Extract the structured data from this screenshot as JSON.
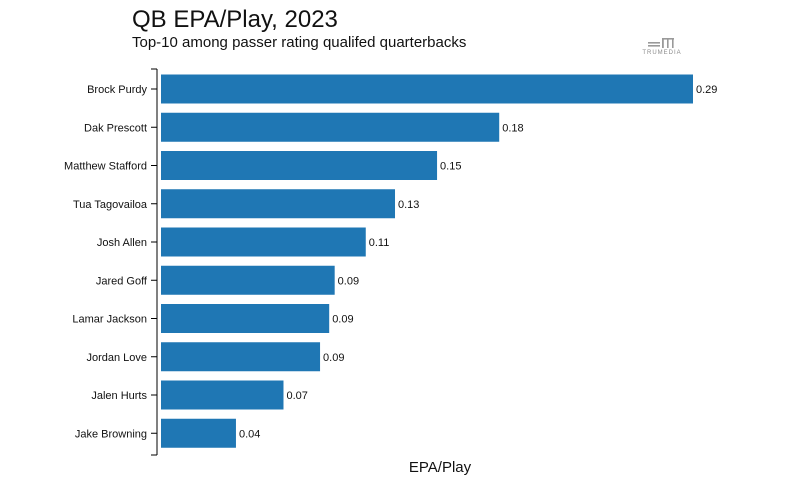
{
  "chart_data": {
    "type": "bar",
    "orientation": "horizontal",
    "title": "QB EPA/Play, 2023",
    "subtitle": "Top-10 among passer rating qualifed quarterbacks",
    "xlabel": "EPA/Play",
    "ylabel": "",
    "categories": [
      "Brock Purdy",
      "Dak Prescott",
      "Matthew Stafford",
      "Tua Tagovailoa",
      "Josh Allen",
      "Jared Goff",
      "Lamar Jackson",
      "Jordan Love",
      "Jalen Hurts",
      "Jake Browning"
    ],
    "values": [
      0.29,
      0.18,
      0.15,
      0.13,
      0.11,
      0.09,
      0.09,
      0.09,
      0.07,
      0.04
    ],
    "value_labels": [
      "0.29",
      "0.18",
      "0.15",
      "0.13",
      "0.11",
      "0.09",
      "0.09",
      "0.09",
      "0.07",
      "0.04"
    ],
    "bar_values_precise": [
      0.291,
      0.185,
      0.151,
      0.128,
      0.112,
      0.095,
      0.092,
      0.087,
      0.067,
      0.041
    ],
    "xlim": [
      0,
      0.291
    ],
    "grid": false,
    "bar_color": "#1f77b4"
  },
  "logo": {
    "text": "TRUMEDIA"
  }
}
